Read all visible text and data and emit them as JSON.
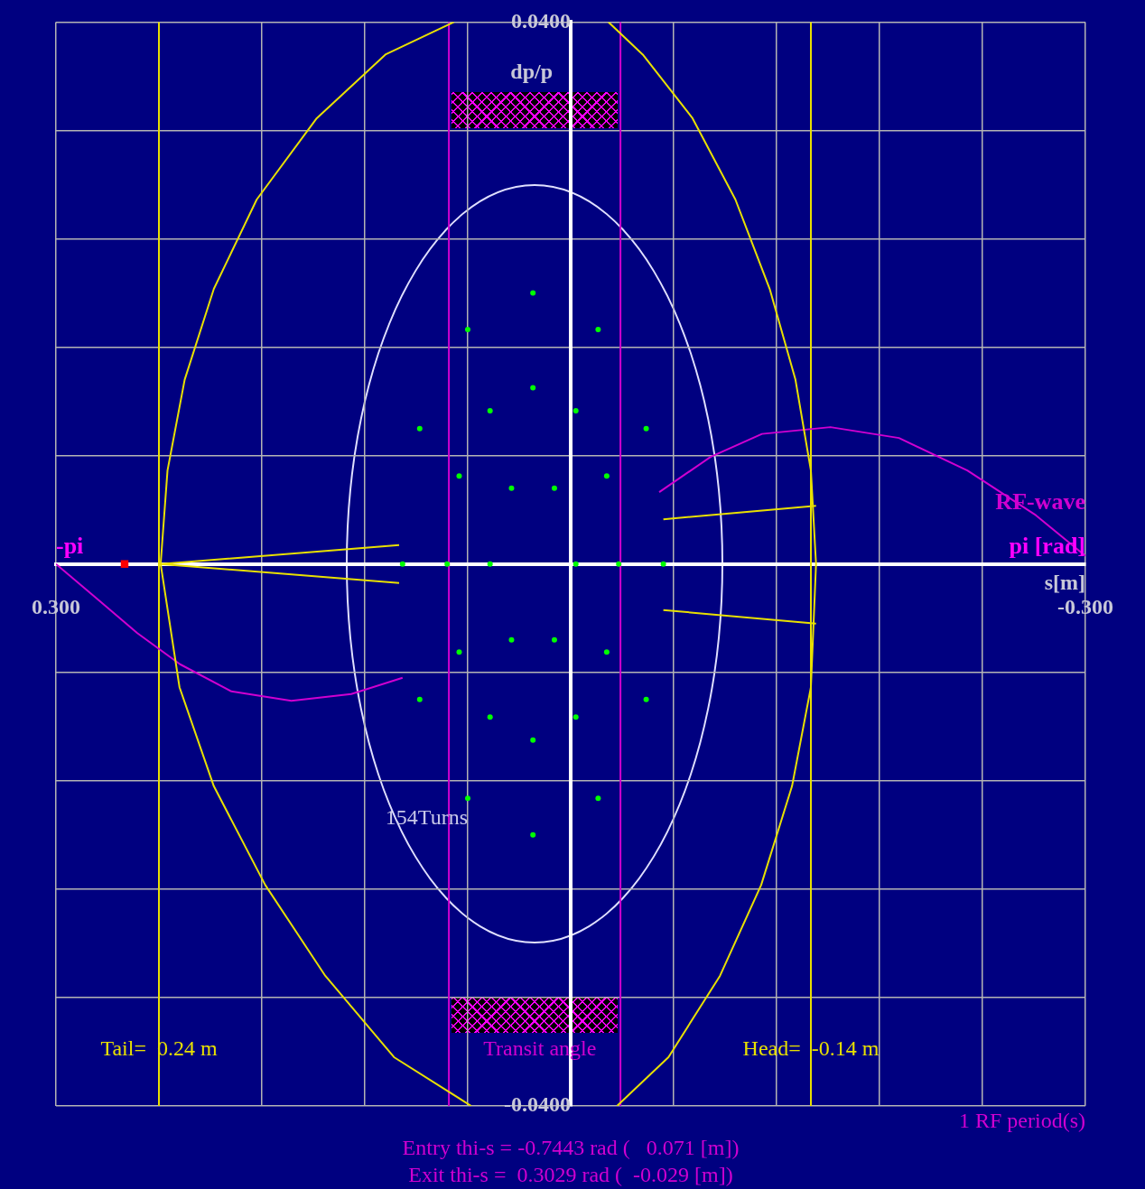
{
  "chart_data": {
    "type": "scatter",
    "xlabel": "s[m]",
    "ylabel": "dp/p",
    "xlim": [
      0.3,
      -0.3
    ],
    "xticks": [
      {
        "value": 0.3,
        "label": "0.300"
      },
      {
        "value": 0.24,
        "label": null
      },
      {
        "value": 0.18,
        "label": null
      },
      {
        "value": 0.12,
        "label": null
      },
      {
        "value": 0.06,
        "label": null
      },
      {
        "value": 0,
        "label": null
      },
      {
        "value": -0.06,
        "label": null
      },
      {
        "value": -0.12,
        "label": null
      },
      {
        "value": -0.18,
        "label": null
      },
      {
        "value": -0.24,
        "label": null
      },
      {
        "value": -0.3,
        "label": "-0.300"
      }
    ],
    "ylim": [
      -0.04,
      0.04
    ],
    "yticks": [
      {
        "value": -0.04,
        "label": "-0.0400"
      },
      {
        "value": -0.032,
        "label": null
      },
      {
        "value": -0.024,
        "label": null
      },
      {
        "value": -0.016,
        "label": null
      },
      {
        "value": -0.008,
        "label": null
      },
      {
        "value": 0,
        "label": null
      },
      {
        "value": 0.008,
        "label": null
      },
      {
        "value": 0.016,
        "label": null
      },
      {
        "value": 0.024,
        "label": null
      },
      {
        "value": 0.032,
        "label": null
      },
      {
        "value": 0.04,
        "label": "0.0400"
      }
    ],
    "grid": true,
    "legend": false,
    "series": [
      {
        "type": "line",
        "color": "#e8e000",
        "x": [
          0.068,
          0.108,
          0.148,
          0.183,
          0.208,
          0.225,
          0.235,
          0.239,
          0.228,
          0.208,
          0.178,
          0.143,
          0.103,
          0.058,
          null,
          -0.022,
          -0.042,
          -0.071,
          -0.096,
          -0.116,
          -0.131,
          -0.14,
          -0.143,
          -0.14,
          -0.129,
          -0.111,
          -0.087,
          -0.057,
          -0.027
        ],
        "values": [
          0.04,
          0.0376,
          0.0329,
          0.0269,
          0.0203,
          0.0136,
          0.0069,
          0,
          -0.0091,
          -0.0164,
          -0.0237,
          -0.0304,
          -0.0364,
          -0.04,
          null,
          0.04,
          0.0376,
          0.0329,
          0.0269,
          0.0203,
          0.0136,
          0.0069,
          0,
          -0.0091,
          -0.0164,
          -0.0237,
          -0.0304,
          -0.0364,
          -0.04
        ]
      },
      {
        "type": "line",
        "color": "#e8e000",
        "x": [
          0.1,
          0.239,
          0.1
        ],
        "values": [
          0.0014,
          0,
          -0.0014
        ]
      },
      {
        "type": "line",
        "color": "#e8e000",
        "x": [
          -0.054,
          -0.143
        ],
        "values": [
          0.0033,
          0.0043
        ]
      },
      {
        "type": "line",
        "color": "#e8e000",
        "x": [
          -0.054,
          -0.143
        ],
        "values": [
          -0.0034,
          -0.0044
        ]
      },
      {
        "type": "line",
        "name": "RF-wave",
        "color": "#d000d0",
        "x": [
          0.3,
          0.2776,
          0.2526,
          0.2277,
          0.1978,
          0.1628,
          0.1279,
          0.098,
          null,
          -0.0516,
          -0.0815,
          -0.1115,
          -0.1514,
          -0.1913,
          -0.2312,
          -0.2711,
          -0.3
        ],
        "values": [
          0,
          -0.0024,
          -0.0051,
          -0.0074,
          -0.0094,
          -0.0101,
          -0.0096,
          -0.0084,
          null,
          0.0053,
          0.0079,
          0.0096,
          0.0101,
          0.0093,
          0.0069,
          0.0036,
          0.0006
        ]
      },
      {
        "type": "scatter",
        "marker": "circle",
        "color": "#00ff00",
        "x": [
          0.098,
          0.088,
          0.06,
          0.022,
          -0.016,
          -0.044,
          -0.054,
          -0.044,
          -0.016,
          0.022,
          0.06,
          0.088,
          0.072,
          0.065,
          0.047,
          0.022,
          -0.003,
          -0.021,
          -0.028,
          -0.021,
          -0.003,
          0.022,
          0.047,
          0.065,
          0.047,
          0.0345,
          0.0095,
          -0.003,
          0.0095,
          0.0345
        ],
        "values": [
          0,
          0.01,
          0.0173,
          0.02,
          0.0173,
          0.01,
          0,
          -0.01,
          -0.0173,
          -0.02,
          -0.0173,
          -0.01,
          0,
          0.0065,
          0.0113,
          0.013,
          0.0113,
          0.0065,
          0,
          -0.0065,
          -0.0113,
          -0.013,
          -0.0113,
          -0.0065,
          0,
          0.0056,
          0.0056,
          0,
          -0.0056,
          -0.0056
        ]
      },
      {
        "type": "scatter",
        "marker": "square",
        "color": "#ff0000",
        "x": [
          0.26
        ],
        "values": [
          0
        ]
      }
    ],
    "ref_lines": [
      {
        "axis": "x",
        "value": 0.071,
        "color": "#d000d0"
      },
      {
        "axis": "x",
        "value": -0.029,
        "color": "#d000d0"
      },
      {
        "axis": "x",
        "value": 0.24,
        "color": "#e8e000",
        "label": "Tail=  0.24 m"
      },
      {
        "axis": "x",
        "value": -0.14,
        "color": "#e8e000",
        "label": "Head=  -0.14 m"
      }
    ],
    "annotations": [
      "-pi",
      "pi [rad]",
      "154Turns",
      "Transit angle",
      "1 RF period(s)",
      "Entry thi-s = -0.7443 rad (   0.071 [m])",
      "Exit thi-s =  0.3029 rad (  -0.029 [m])"
    ]
  }
}
